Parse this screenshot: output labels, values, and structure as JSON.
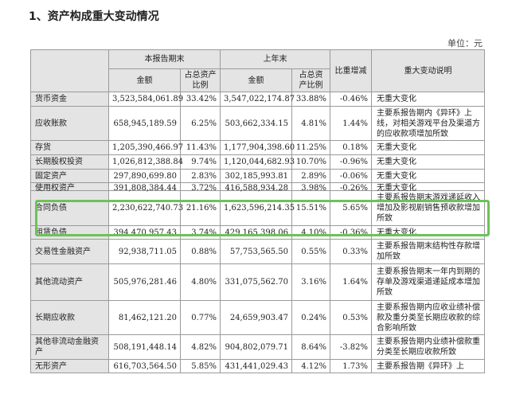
{
  "section_title": "1、资产构成重大变动情况",
  "unit": "单位：元",
  "headers": {
    "current_period": "本报告期末",
    "last_year_end": "上年末",
    "ratio_change": "比重增减",
    "explanation": "重大变动说明",
    "amount": "金额",
    "share": "占总资产比例"
  },
  "rows": [
    {
      "name": "货币资金",
      "cur_amount": "3,523,584,061.89",
      "cur_pct": "33.42%",
      "prev_amount": "3,547,022,174.87",
      "prev_pct": "33.88%",
      "change": "-0.46%",
      "note": "无重大变化"
    },
    {
      "name": "应收账款",
      "cur_amount": "658,945,189.59",
      "cur_pct": "6.25%",
      "prev_amount": "503,662,334.15",
      "prev_pct": "4.81%",
      "change": "1.44%",
      "note": "主要系报告期内《异环》上线，对相关游戏平台及渠道方的应收款项增加所致"
    },
    {
      "name": "存货",
      "cur_amount": "1,205,390,466.97",
      "cur_pct": "11.43%",
      "prev_amount": "1,177,904,398.60",
      "prev_pct": "11.25%",
      "change": "0.18%",
      "note": "无重大变化"
    },
    {
      "name": "长期股权投资",
      "cur_amount": "1,026,812,388.84",
      "cur_pct": "9.74%",
      "prev_amount": "1,120,044,682.93",
      "prev_pct": "10.70%",
      "change": "-0.96%",
      "note": "无重大变化"
    },
    {
      "name": "固定资产",
      "cur_amount": "297,890,699.80",
      "cur_pct": "2.83%",
      "prev_amount": "302,185,993.81",
      "prev_pct": "2.89%",
      "change": "-0.06%",
      "note": "无重大变化"
    },
    {
      "name": "使用权资产",
      "cur_amount": "391,808,384.44",
      "cur_pct": "3.72%",
      "prev_amount": "416,588,934.28",
      "prev_pct": "3.98%",
      "change": "-0.26%",
      "note": "无重大变化"
    },
    {
      "name": "合同负债",
      "cur_amount": "2,230,622,740.73",
      "cur_pct": "21.16%",
      "prev_amount": "1,623,596,214.35",
      "prev_pct": "15.51%",
      "change": "5.65%",
      "note": "主要系报告期末游戏递延收入增加及影视剧销售预收款增加所致"
    },
    {
      "name": "租赁负债",
      "cur_amount": "394,470,957.43",
      "cur_pct": "3.74%",
      "prev_amount": "429,165,398.06",
      "prev_pct": "4.10%",
      "change": "-0.36%",
      "note": "无重大变化"
    },
    {
      "name": "交易性金融资产",
      "cur_amount": "92,938,711.05",
      "cur_pct": "0.88%",
      "prev_amount": "57,753,565.50",
      "prev_pct": "0.55%",
      "change": "0.33%",
      "note": "主要系报告期末结构性存款增加所致"
    },
    {
      "name": "其他流动资产",
      "cur_amount": "505,976,281.46",
      "cur_pct": "4.80%",
      "prev_amount": "331,075,562.70",
      "prev_pct": "3.16%",
      "change": "1.64%",
      "note": "主要系报告期末一年内到期的存单及游戏渠道递延成本增加所致"
    },
    {
      "name": "长期应收款",
      "cur_amount": "81,462,121.20",
      "cur_pct": "0.77%",
      "prev_amount": "24,659,903.47",
      "prev_pct": "0.24%",
      "change": "0.53%",
      "note": "主要系报告期内应收业绩补偿款及重分类至长期应收款的综合影响所致"
    },
    {
      "name": "其他非流动金融资产",
      "cur_amount": "508,191,448.14",
      "cur_pct": "4.82%",
      "prev_amount": "904,802,079.71",
      "prev_pct": "8.64%",
      "change": "-3.82%",
      "note": "主要系报告期内业绩补偿款重分类至长期应收款所致"
    },
    {
      "name": "无形资产",
      "cur_amount": "616,703,564.50",
      "cur_pct": "5.85%",
      "prev_amount": "431,441,029.43",
      "prev_pct": "4.12%",
      "change": "1.73%",
      "note": "主要系报告期《异环》上"
    }
  ]
}
